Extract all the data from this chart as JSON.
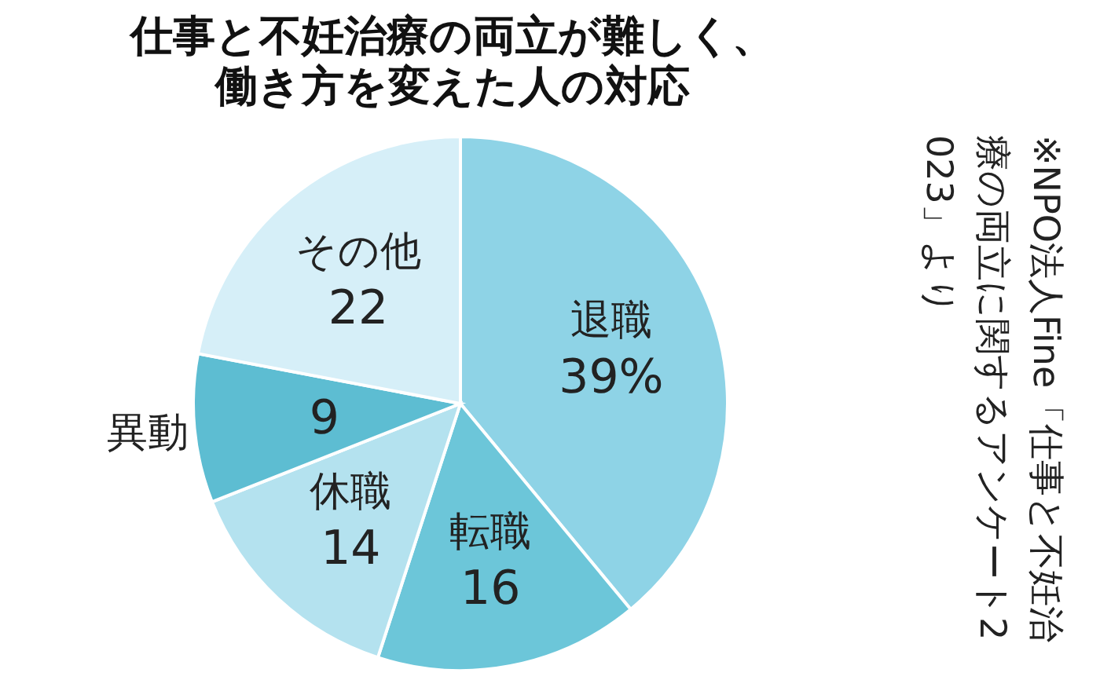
{
  "chart_data": {
    "type": "pie",
    "title": "仕事と不妊治療の両立が難しく、働き方を変えた人の対応",
    "categories": [
      "退職",
      "転職",
      "休職",
      "異動",
      "その他"
    ],
    "values": [
      39,
      16,
      14,
      9,
      22
    ],
    "value_labels": [
      "39%",
      "16",
      "14",
      "9",
      "22"
    ],
    "colors": [
      "#8ed3e6",
      "#6cc6d9",
      "#b4e2ef",
      "#5dbdd2",
      "#d6eff8"
    ],
    "annotations": [
      "※NPO法人Fine「仕事と不妊治療の両立に関するアンケート2023」より"
    ]
  }
}
